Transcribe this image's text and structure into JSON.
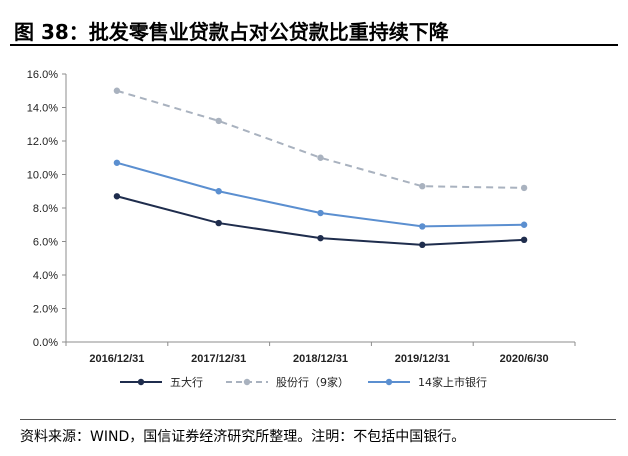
{
  "title": "图 38：批发零售业贷款占对公贷款比重持续下降",
  "source": "资料来源：WIND，国信证券经济研究所整理。注明：不包括中国银行。",
  "chart_data": {
    "type": "line",
    "categories": [
      "2016/12/31",
      "2017/12/31",
      "2018/12/31",
      "2019/12/31",
      "2020/6/30"
    ],
    "ylim": [
      0,
      16
    ],
    "yticks": [
      "0.0%",
      "2.0%",
      "4.0%",
      "6.0%",
      "8.0%",
      "10.0%",
      "12.0%",
      "14.0%",
      "16.0%"
    ],
    "legend_position": "bottom",
    "series": [
      {
        "name": "五大行",
        "values": [
          8.7,
          7.1,
          6.2,
          5.8,
          6.1
        ],
        "color": "#1f2d4d",
        "dash": false
      },
      {
        "name": "股份行（9家）",
        "values": [
          15.0,
          13.2,
          11.0,
          9.3,
          9.2
        ],
        "color": "#a9b2bf",
        "dash": true
      },
      {
        "name": "14家上市银行",
        "values": [
          10.7,
          9.0,
          7.7,
          6.9,
          7.0
        ],
        "color": "#5b8fd0",
        "dash": false
      }
    ]
  }
}
